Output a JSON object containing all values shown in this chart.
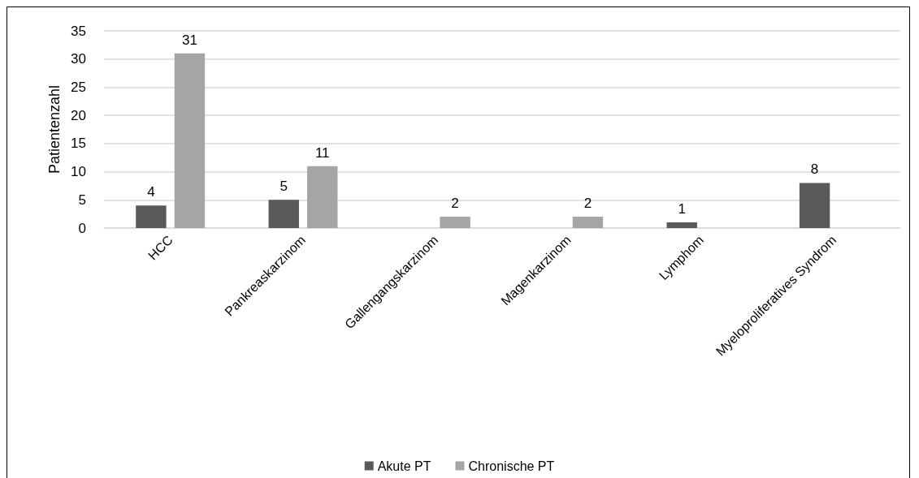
{
  "chart_data": {
    "type": "bar",
    "ylabel": "Patientenzahl",
    "categories": [
      "HCC",
      "Pankreaskarzinom",
      "Gallengangskarzinom",
      "Magenkarzinom",
      "Lymphom",
      "Myeloproliferatives Syndrom"
    ],
    "series": [
      {
        "name": "Akute PT",
        "color": "#595959",
        "values": [
          4,
          5,
          null,
          null,
          1,
          8
        ]
      },
      {
        "name": "Chronische PT",
        "color": "#a5a5a5",
        "values": [
          31,
          11,
          2,
          2,
          null,
          null
        ]
      }
    ],
    "ylim": [
      0,
      35
    ],
    "yticks": [
      0,
      5,
      10,
      15,
      20,
      25,
      30,
      35
    ],
    "grid": "y",
    "legend": "bottom",
    "data_labels": true
  }
}
